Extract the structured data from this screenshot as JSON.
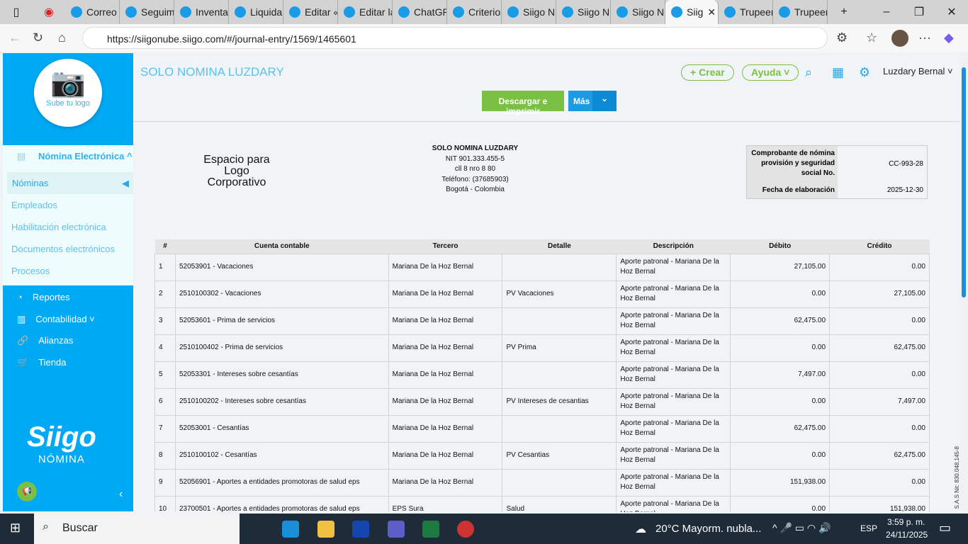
{
  "browser": {
    "tabs": [
      {
        "label": "Correo"
      },
      {
        "label": "Seguim"
      },
      {
        "label": "Inventa"
      },
      {
        "label": "Liquidar"
      },
      {
        "label": "Editar «"
      },
      {
        "label": "Editar la"
      },
      {
        "label": "ChatGP"
      },
      {
        "label": "Criterios"
      },
      {
        "label": "Siigo N"
      },
      {
        "label": "Siigo N"
      },
      {
        "label": "Siigo N"
      },
      {
        "label": "Siig",
        "active": true
      },
      {
        "label": "Trupeer"
      },
      {
        "label": "Trupeer"
      }
    ],
    "url": "https://siigonube.siigo.com/#/journal-entry/1569/1465601"
  },
  "sidebar": {
    "logo_label": "Sube tu logo",
    "section": "Nómina Electrónica ^",
    "items": [
      "Nóminas",
      "Empleados",
      "Habilitación electrónica",
      "Documentos electrónicos",
      "Procesos"
    ],
    "bottom": [
      "Reportes",
      "Contabilidad ˅",
      "Alianzas",
      "Tienda"
    ],
    "brand": "Siigo",
    "brand_sub": "NÓMINA"
  },
  "header": {
    "company": "SOLO NOMINA LUZDARY",
    "crear": "+ Crear",
    "ayuda": "Ayuda ˅",
    "user": "Luzdary Bernal ˅",
    "download": "Descargar e imprimir",
    "more": "Más"
  },
  "document": {
    "logo_placeholder": "Espacio para Logo Corporativo",
    "company_lines": [
      "SOLO NOMINA LUZDARY",
      "NIT 901.333.455-5",
      "cll 8 nro 8 80",
      "Teléfono: (37685903)",
      "Bogotá - Colombia"
    ],
    "voucher_label": "Comprobante de nómina provisión y seguridad social No.",
    "voucher_value": "CC-993-28",
    "date_label": "Fecha de elaboración",
    "date_value": "2025-12-30",
    "columns": [
      "#",
      "Cuenta contable",
      "Tercero",
      "Detalle",
      "Descripción",
      "Débito",
      "Crédito"
    ],
    "rows": [
      [
        "1",
        "52053901 - Vacaciones",
        "Mariana De la Hoz Bernal",
        "",
        "Aporte patronal - Mariana De la Hoz Bernal",
        "27,105.00",
        "0.00"
      ],
      [
        "2",
        "2510100302 - Vacaciones",
        "Mariana De la Hoz Bernal",
        "PV Vacaciones",
        "Aporte patronal - Mariana De la Hoz Bernal",
        "0.00",
        "27,105.00"
      ],
      [
        "3",
        "52053601 - Prima de servicios",
        "Mariana De la Hoz Bernal",
        "",
        "Aporte patronal - Mariana De la Hoz Bernal",
        "62,475.00",
        "0.00"
      ],
      [
        "4",
        "2510100402 - Prima de servicios",
        "Mariana De la Hoz Bernal",
        "PV Prima",
        "Aporte patronal - Mariana De la Hoz Bernal",
        "0.00",
        "62,475.00"
      ],
      [
        "5",
        "52053301 - Intereses sobre cesantías",
        "Mariana De la Hoz Bernal",
        "",
        "Aporte patronal - Mariana De la Hoz Bernal",
        "7,497.00",
        "0.00"
      ],
      [
        "6",
        "2510100202 - Intereses sobre cesantías",
        "Mariana De la Hoz Bernal",
        "PV Intereses de cesantias",
        "Aporte patronal - Mariana De la Hoz Bernal",
        "0.00",
        "7,497.00"
      ],
      [
        "7",
        "52053001 - Cesantías",
        "Mariana De la Hoz Bernal",
        "",
        "Aporte patronal - Mariana De la Hoz Bernal",
        "62,475.00",
        "0.00"
      ],
      [
        "8",
        "2510100102 - Cesantías",
        "Mariana De la Hoz Bernal",
        "PV Cesantias",
        "Aporte patronal - Mariana De la Hoz Bernal",
        "0.00",
        "62,475.00"
      ],
      [
        "9",
        "52056901 - Aportes a entidades promotoras de salud eps",
        "Mariana De la Hoz Bernal",
        "",
        "Aporte patronal - Mariana De la Hoz Bernal",
        "151,938.00",
        "0.00"
      ],
      [
        "10",
        "23700501 - Aportes a entidades promotoras de salud eps",
        "EPS Sura",
        "Salud",
        "Aporte patronal - Mariana De la Hoz Bernal",
        "0.00",
        "151,938.00"
      ]
    ],
    "vertical_note": "S.A.S Nit: 830.048.145-8"
  },
  "taskbar": {
    "search": "Buscar",
    "weather": "20°C  Mayorm. nubla...",
    "lang": "ESP",
    "time": "3:59 p. m.",
    "date": "24/11/2025"
  },
  "colors": {
    "brand_blue": "#00a9f4",
    "green": "#7ac143"
  }
}
